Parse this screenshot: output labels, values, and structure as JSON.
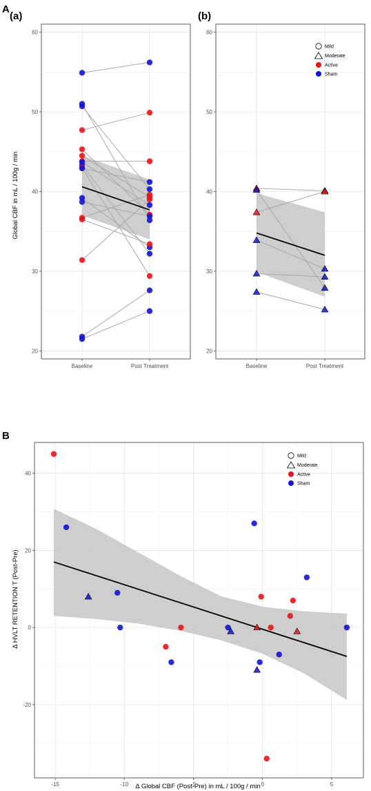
{
  "labels": {
    "A": "A",
    "B": "B",
    "a": "(a)",
    "b": "(b)"
  },
  "legend": {
    "mild": "Mild",
    "moderate": "Moderate",
    "active": "Active",
    "sham": "Sham"
  },
  "colors": {
    "active": "#e8141c",
    "sham": "#1414d2",
    "band": "#c6c6c6",
    "segment": "#a9a9a9",
    "fit": "#000000"
  },
  "chart_data": [
    {
      "id": "A-a",
      "type": "line",
      "title": "(a)",
      "ylabel": "Global CBF in mL / 100g / min",
      "ylim": [
        19,
        61
      ],
      "yticks": [
        20,
        30,
        40,
        50,
        60
      ],
      "categories": [
        "Baseline",
        "Post Treatment"
      ],
      "grid": true,
      "pairs": [
        {
          "pre": 54.9,
          "post": 56.2,
          "group": "sham"
        },
        {
          "pre": 51.0,
          "post": 36.4,
          "group": "sham"
        },
        {
          "pre": 50.7,
          "post": 40.3,
          "group": "sham"
        },
        {
          "pre": 47.7,
          "post": 49.9,
          "group": "active"
        },
        {
          "pre": 45.3,
          "post": 37.1,
          "group": "active"
        },
        {
          "pre": 44.5,
          "post": 39.3,
          "group": "active"
        },
        {
          "pre": 43.8,
          "post": 43.8,
          "group": "active"
        },
        {
          "pre": 43.7,
          "post": 38.3,
          "group": "sham"
        },
        {
          "pre": 43.3,
          "post": 32.2,
          "group": "sham"
        },
        {
          "pre": 43.0,
          "post": 29.4,
          "group": "active"
        },
        {
          "pre": 42.9,
          "post": 41.2,
          "group": "sham"
        },
        {
          "pre": 39.2,
          "post": 33.0,
          "group": "sham"
        },
        {
          "pre": 38.7,
          "post": 36.9,
          "group": "sham"
        },
        {
          "pre": 36.7,
          "post": 39.6,
          "group": "active"
        },
        {
          "pre": 36.5,
          "post": 33.4,
          "group": "active"
        },
        {
          "pre": 31.4,
          "post": 39.0,
          "group": "active"
        },
        {
          "pre": 21.8,
          "post": 27.6,
          "group": "sham"
        },
        {
          "pre": 21.5,
          "post": 25.0,
          "group": "sham"
        }
      ],
      "fit": {
        "pre": 40.6,
        "post": 37.7
      },
      "band": {
        "pre": [
          37.0,
          44.5
        ],
        "post": [
          34.0,
          41.5
        ]
      }
    },
    {
      "id": "A-b",
      "type": "line",
      "title": "(b)",
      "ylim": [
        19,
        61
      ],
      "yticks": [
        20,
        30,
        40,
        50,
        60
      ],
      "categories": [
        "Baseline",
        "Post Treatment"
      ],
      "grid": true,
      "legend_position": "top-right",
      "pairs": [
        {
          "pre": 40.4,
          "post": 40.1,
          "group": "active"
        },
        {
          "pre": 40.2,
          "post": 27.9,
          "group": "sham"
        },
        {
          "pre": 37.4,
          "post": 40.0,
          "group": "active"
        },
        {
          "pre": 33.9,
          "post": 30.3,
          "group": "sham"
        },
        {
          "pre": 29.7,
          "post": 29.3,
          "group": "sham"
        },
        {
          "pre": 27.4,
          "post": 25.2,
          "group": "sham"
        }
      ],
      "fit": {
        "pre": 34.8,
        "post": 32.0
      },
      "band": {
        "pre": [
          29.9,
          39.8
        ],
        "post": [
          26.8,
          37.4
        ]
      }
    },
    {
      "id": "B",
      "type": "scatter",
      "ylabel": "Δ  HVLT RETENTION T (Post-Pre)",
      "xlabel": "Δ  Global CBF (Post-Pre) in mL / 100g / min",
      "xlim": [
        -16.5,
        7.3
      ],
      "ylim": [
        -39,
        48
      ],
      "xticks": [
        -15,
        -10,
        -5,
        0,
        5
      ],
      "yticks": [
        -20,
        0,
        20,
        40
      ],
      "grid": true,
      "legend_position": "top-right",
      "points": [
        {
          "x": -15.1,
          "y": 45,
          "group": "active",
          "shape": "circle"
        },
        {
          "x": -14.2,
          "y": 26,
          "group": "sham",
          "shape": "circle"
        },
        {
          "x": -12.6,
          "y": 8,
          "group": "sham",
          "shape": "triangle"
        },
        {
          "x": -10.5,
          "y": 9,
          "group": "sham",
          "shape": "circle"
        },
        {
          "x": -10.3,
          "y": 0,
          "group": "sham",
          "shape": "circle"
        },
        {
          "x": -7.0,
          "y": -5,
          "group": "active",
          "shape": "circle"
        },
        {
          "x": -6.6,
          "y": -9,
          "group": "sham",
          "shape": "circle"
        },
        {
          "x": -5.9,
          "y": 0,
          "group": "active",
          "shape": "circle"
        },
        {
          "x": -2.5,
          "y": 0,
          "group": "sham",
          "shape": "circle"
        },
        {
          "x": -2.3,
          "y": -1,
          "group": "sham",
          "shape": "triangle"
        },
        {
          "x": -0.6,
          "y": 27,
          "group": "sham",
          "shape": "circle"
        },
        {
          "x": -0.4,
          "y": 0,
          "group": "active",
          "shape": "triangle"
        },
        {
          "x": -0.4,
          "y": -11,
          "group": "sham",
          "shape": "triangle"
        },
        {
          "x": -0.2,
          "y": -9,
          "group": "sham",
          "shape": "circle"
        },
        {
          "x": -0.1,
          "y": 8,
          "group": "active",
          "shape": "circle"
        },
        {
          "x": 0.3,
          "y": -34,
          "group": "active",
          "shape": "circle"
        },
        {
          "x": 0.6,
          "y": 0,
          "group": "active",
          "shape": "circle"
        },
        {
          "x": 1.2,
          "y": -7,
          "group": "sham",
          "shape": "circle"
        },
        {
          "x": 2.0,
          "y": 3,
          "group": "active",
          "shape": "circle"
        },
        {
          "x": 2.2,
          "y": 7,
          "group": "active",
          "shape": "circle"
        },
        {
          "x": 2.5,
          "y": -1,
          "group": "active",
          "shape": "triangle"
        },
        {
          "x": 3.2,
          "y": 13,
          "group": "sham",
          "shape": "circle"
        },
        {
          "x": 6.1,
          "y": 0,
          "group": "sham",
          "shape": "circle"
        }
      ],
      "fit": {
        "x": [
          -15.1,
          6.1
        ],
        "y": [
          17.0,
          -7.5
        ]
      },
      "band": {
        "x": [
          -15.1,
          -12,
          -9,
          -6,
          -3,
          0,
          3,
          6.1
        ],
        "lower": [
          3.0,
          2.2,
          1.0,
          -0.8,
          -3.3,
          -6.8,
          -11.9,
          -18.8
        ],
        "upper": [
          30.8,
          25.5,
          19.5,
          13.5,
          8.1,
          5.4,
          4.2,
          3.6
        ]
      }
    }
  ]
}
